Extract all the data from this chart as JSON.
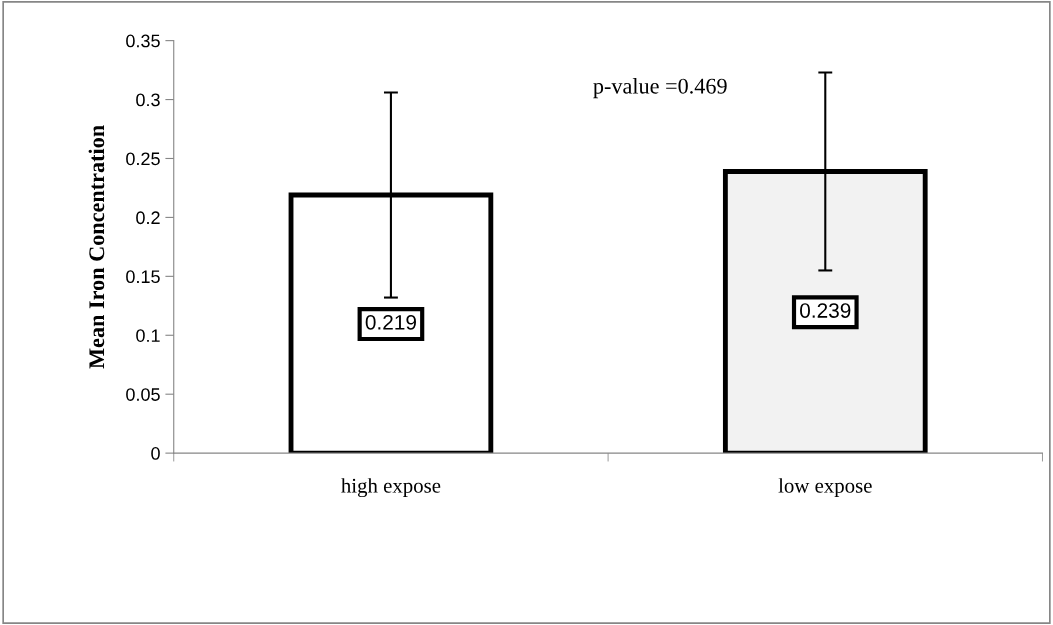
{
  "chart_data": {
    "type": "bar",
    "ylabel": "Mean Iron Concentration",
    "categories": [
      "high expose",
      "low expose"
    ],
    "values": [
      0.219,
      0.239
    ],
    "colors": [
      "#ffffff",
      "#f2f2f2"
    ],
    "errors": [
      0.087,
      0.084
    ],
    "data_labels": true,
    "ylim": [
      0,
      0.35
    ],
    "yticks": [
      0,
      0.05,
      0.1,
      0.15,
      0.2,
      0.25,
      0.3,
      0.35
    ],
    "grid": false,
    "legend": false,
    "annotations": [
      "p-value =0.469"
    ]
  }
}
